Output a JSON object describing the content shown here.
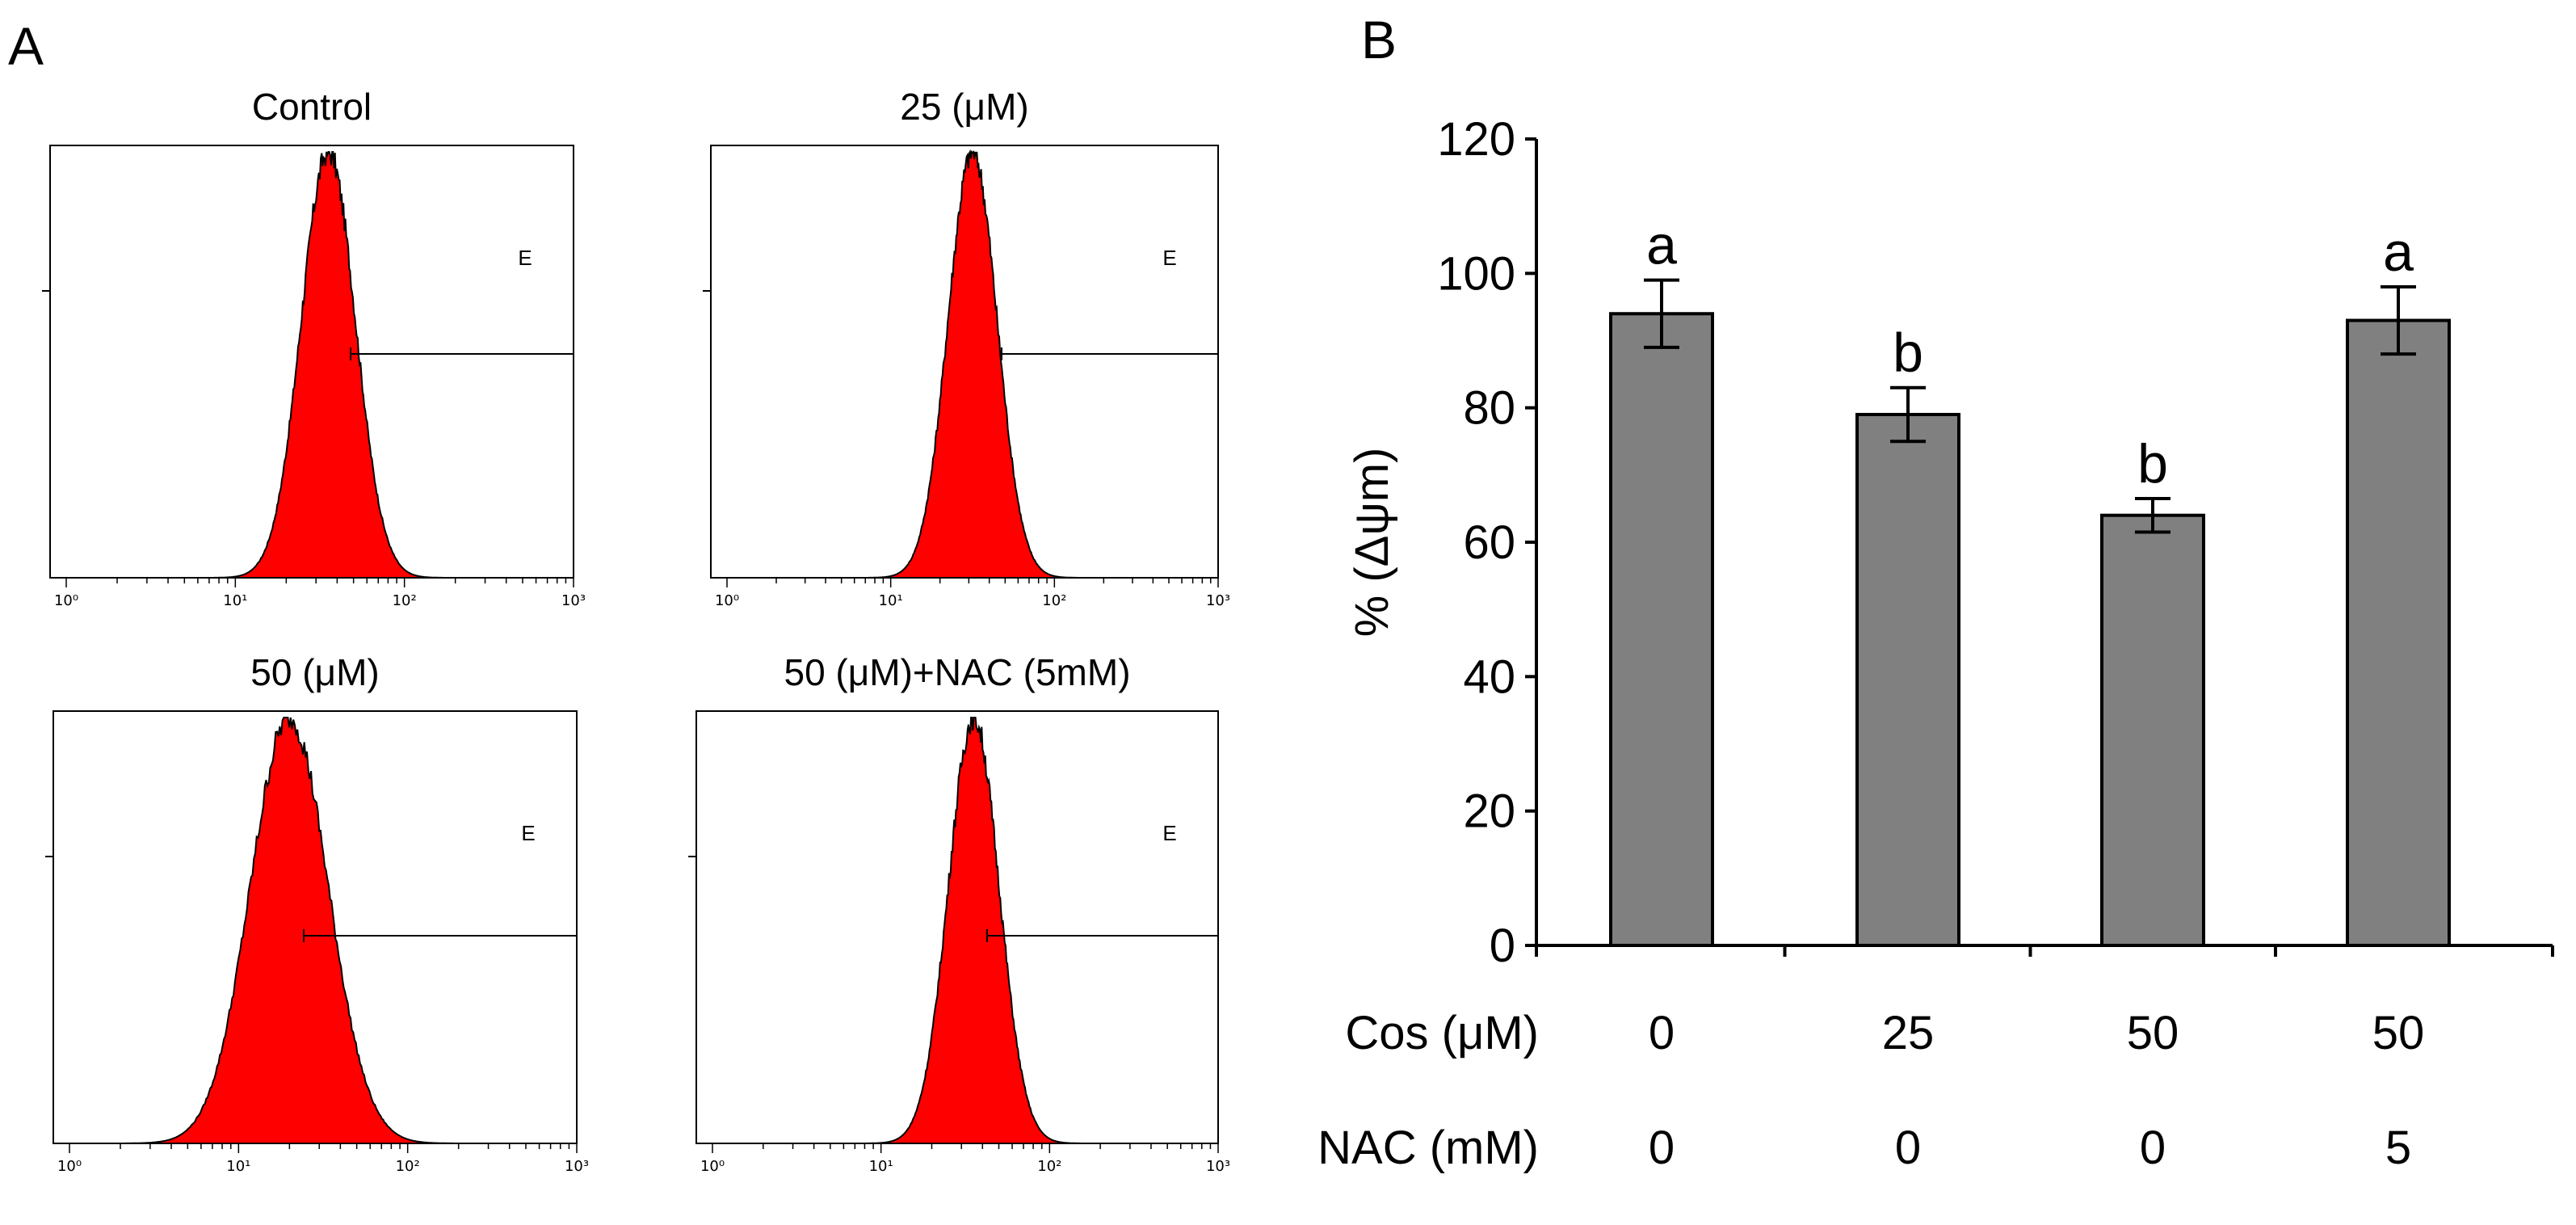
{
  "panel_labels": {
    "a": "A",
    "b": "B"
  },
  "colors": {
    "histogram_fill": "#ff0000",
    "bar_fill": "#808080",
    "ink": "#000000"
  },
  "chart_data": [
    {
      "type": "histogram",
      "scale": "log",
      "x_ticks": [
        "10⁰",
        "10¹",
        "10²",
        "10³"
      ],
      "panels": [
        {
          "title": "Control",
          "gate_label": "E",
          "peak_log": 1.55,
          "sigma": 0.16
        },
        {
          "title": "25 (μM)",
          "gate_label": "E",
          "peak_log": 1.5,
          "sigma": 0.15
        },
        {
          "title": "50 (μM)",
          "gate_label": "E",
          "peak_log": 1.3,
          "sigma": 0.23
        },
        {
          "title": "50 (μM)+NAC (5mM)",
          "gate_label": "E",
          "peak_log": 1.55,
          "sigma": 0.15
        }
      ]
    },
    {
      "type": "bar",
      "ylabel": "% (Δψm)",
      "ylim": [
        0,
        120
      ],
      "yticks": [
        "0",
        "20",
        "40",
        "60",
        "80",
        "100",
        "120"
      ],
      "series": [
        {
          "values": [
            94,
            79,
            64,
            93
          ],
          "errors": [
            5,
            4,
            2.5,
            5
          ],
          "significance": [
            "a",
            "b",
            "b",
            "a"
          ]
        }
      ],
      "rows": [
        {
          "label": "Cos (μM)",
          "values": [
            "0",
            "25",
            "50",
            "50"
          ]
        },
        {
          "label": "NAC (mM)",
          "values": [
            "0",
            "0",
            "0",
            "5"
          ]
        }
      ]
    }
  ]
}
